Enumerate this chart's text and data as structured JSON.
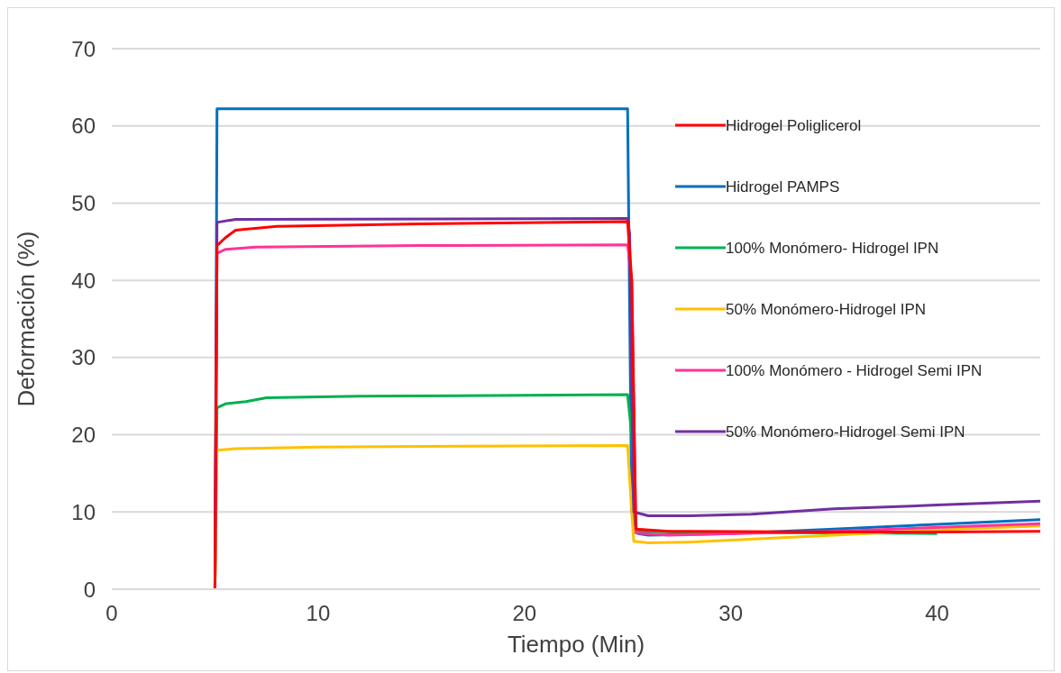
{
  "chart_data": {
    "type": "line",
    "xlabel": "Tiempo (Min)",
    "ylabel": "Deformación (%)",
    "xlim": [
      0,
      45
    ],
    "xticks": [
      0,
      10,
      20,
      30,
      40
    ],
    "ylim": [
      0,
      70
    ],
    "yticks": [
      0,
      10,
      20,
      30,
      40,
      50,
      60,
      70
    ],
    "grid": "y",
    "legend": "right",
    "marker": "none",
    "line_style": "solid",
    "series": [
      {
        "name": "Hidrogel Poliglicerol",
        "color": "#ff0000",
        "x": [
          5,
          5.1,
          5.5,
          6,
          8,
          15,
          25,
          25.2,
          25.4,
          27,
          35,
          40,
          45
        ],
        "values": [
          0,
          44.5,
          45.5,
          46.5,
          47,
          47.3,
          47.6,
          40,
          7.8,
          7.5,
          7.4,
          7.4,
          7.5
        ]
      },
      {
        "name": "Hidrogel PAMPS",
        "color": "#0070c0",
        "x": [
          5,
          5.1,
          25,
          25.2,
          25.5,
          26,
          30,
          35,
          40,
          45
        ],
        "values": [
          0,
          62.2,
          62.2,
          10,
          7.2,
          7,
          7.2,
          7.8,
          8.4,
          9
        ]
      },
      {
        "name": "100% Monómero- Hidrogel IPN",
        "color": "#00b050",
        "x": [
          5,
          5.1,
          5.5,
          6.5,
          7.5,
          12,
          20,
          25,
          25.2,
          25.4,
          30,
          35,
          40
        ],
        "values": [
          0,
          23.5,
          24,
          24.3,
          24.8,
          25,
          25.1,
          25.2,
          20,
          7.5,
          7.3,
          7.3,
          7.2
        ]
      },
      {
        "name": "50% Monómero-Hidrogel IPN",
        "color": "#ffc000",
        "x": [
          5,
          5.1,
          6,
          10,
          15,
          25,
          25.2,
          25.3,
          26,
          28,
          35,
          40,
          45
        ],
        "values": [
          0,
          18,
          18.2,
          18.4,
          18.5,
          18.6,
          10,
          6.2,
          6,
          6.1,
          7,
          7.7,
          8.2
        ]
      },
      {
        "name": "100% Monómero - Hidrogel Semi IPN",
        "color": "#ff3399",
        "x": [
          5,
          5.1,
          5.5,
          7,
          15,
          25,
          25.2,
          25.4,
          27,
          35,
          45
        ],
        "values": [
          0,
          43.5,
          44,
          44.3,
          44.5,
          44.6,
          40,
          7.3,
          7,
          7.5,
          8.5
        ]
      },
      {
        "name": "50% Monómero-Hidrogel Semi IPN",
        "color": "#7030a0",
        "x": [
          5,
          5.1,
          6,
          25,
          25.1,
          25.3,
          26,
          28,
          31,
          35,
          40,
          45
        ],
        "values": [
          0,
          47.5,
          47.9,
          48,
          46,
          10,
          9.5,
          9.5,
          9.7,
          10.4,
          10.9,
          11.4
        ]
      }
    ]
  }
}
